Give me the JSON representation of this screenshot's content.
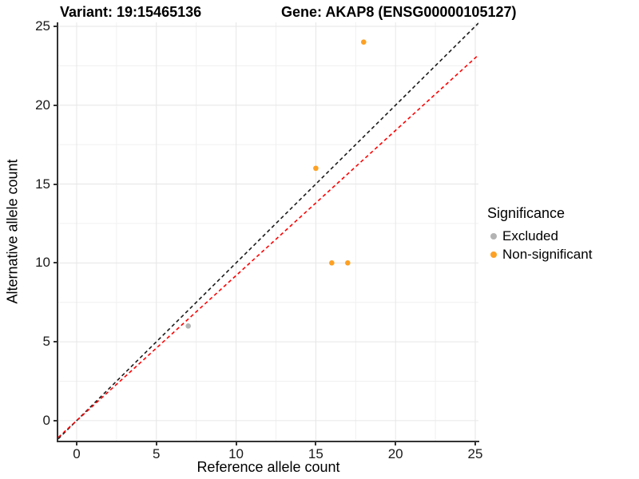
{
  "title": {
    "variant": "Variant: 19:15465136",
    "gene": "Gene: AKAP8 (ENSG00000105127)"
  },
  "chart_data": {
    "type": "scatter",
    "title": "Variant: 19:15465136 — Gene: AKAP8 (ENSG00000105127)",
    "xlabel": "Reference allele count",
    "ylabel": "Alternative allele count",
    "xlim": [
      -1.15,
      25.2
    ],
    "ylim": [
      -1.27,
      25.25
    ],
    "x_ticks": [
      0,
      5,
      10,
      15,
      20,
      25
    ],
    "y_ticks": [
      0,
      5,
      10,
      15,
      20,
      25
    ],
    "minor_ticks": [
      2.5,
      7.5,
      12.5,
      17.5,
      22.5
    ],
    "grid": true,
    "grid_major_color": "#e6e6e6",
    "grid_minor_color": "#f0f0f0",
    "legend_title": "Significance",
    "legend_position": "right",
    "series": [
      {
        "name": "Excluded",
        "color": "#b3b3b3",
        "points": [
          [
            7,
            6
          ]
        ]
      },
      {
        "name": "Non-significant",
        "color": "#fda124",
        "points": [
          [
            15,
            16
          ],
          [
            16,
            10
          ],
          [
            17,
            10
          ],
          [
            18,
            24
          ]
        ]
      }
    ],
    "lines": [
      {
        "name": "identity-line",
        "slope": 1,
        "intercept": 0,
        "color": "#1a1a1a",
        "style": "dashed"
      },
      {
        "name": "expected-ratio-line",
        "slope": 0.92,
        "intercept": 0,
        "color": "#ff0000",
        "style": "dashed"
      }
    ]
  }
}
